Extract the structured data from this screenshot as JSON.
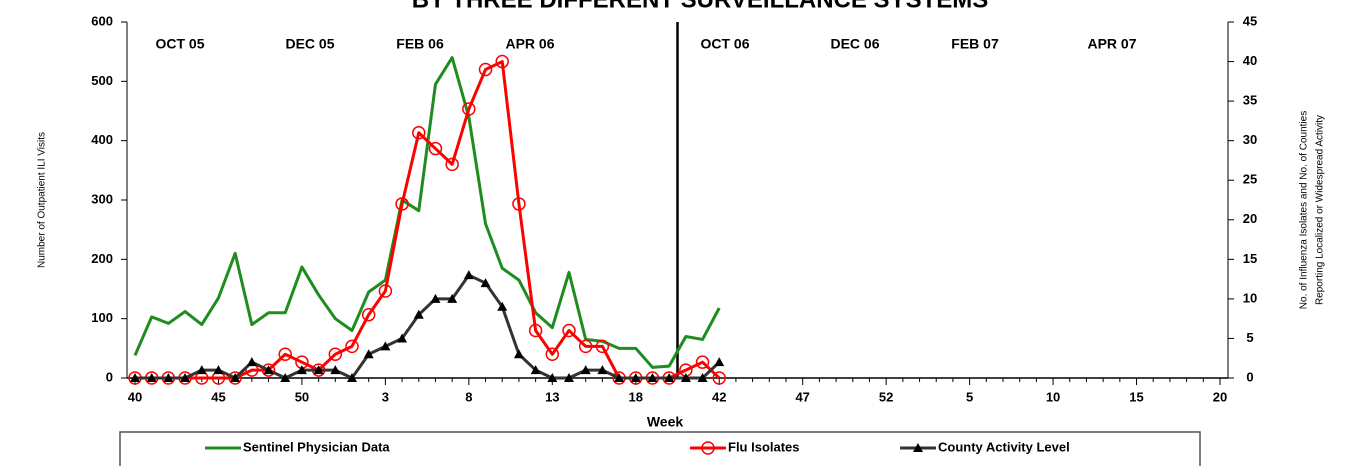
{
  "chart_data": {
    "type": "line",
    "title": "BY THREE DIFFERENT SURVEILLANCE SYSTEMS",
    "x_label": "Week",
    "y_label": "Number of Outpatient ILI Visits",
    "y2_label": [
      "No. of Influenza Isolates and No. of Counties",
      "Reporting Localized or Widespread Activity"
    ],
    "annotations": [
      "OCT 05",
      "DEC 05",
      "FEB 06",
      "APR 06",
      "OCT 06",
      "DEC 06",
      "FEB 07",
      "APR 07"
    ],
    "categories": [
      "40",
      null,
      null,
      null,
      null,
      "45",
      null,
      null,
      null,
      null,
      "50",
      null,
      null,
      null,
      null,
      "3",
      null,
      null,
      null,
      null,
      "8",
      null,
      null,
      null,
      null,
      "13",
      null,
      null,
      null,
      null,
      "18",
      null,
      null,
      null,
      null,
      "42",
      null,
      null,
      null,
      null,
      "47",
      null,
      null,
      null,
      null,
      "52",
      null,
      null,
      null,
      null,
      "5",
      null,
      null,
      null,
      null,
      "10",
      null,
      null,
      null,
      null,
      "15",
      null,
      null,
      null,
      null,
      "20"
    ],
    "ylim": [
      0,
      600
    ],
    "yticks": [
      0,
      100,
      200,
      300,
      400,
      500,
      600
    ],
    "y2lim": [
      0,
      45
    ],
    "y2ticks": [
      0,
      5,
      10,
      15,
      20,
      25,
      30,
      35,
      40,
      45
    ],
    "legend": "bottom",
    "series": [
      {
        "name": "Sentinel Physician Data",
        "color": "#1e8c1e",
        "marker": "none",
        "values": [
          38,
          103,
          92,
          112,
          90,
          135,
          210,
          90,
          110,
          110,
          187,
          140,
          100,
          80,
          145,
          165,
          300,
          282,
          495,
          540,
          440,
          260,
          185,
          165,
          110,
          85,
          178,
          65,
          62,
          50,
          50,
          18,
          20,
          70,
          65,
          118,
          null,
          null,
          null,
          null,
          null,
          null,
          null,
          null,
          null,
          null,
          null,
          null,
          null,
          null,
          null,
          null,
          null,
          null,
          null,
          null,
          null,
          null,
          null,
          null,
          null,
          null,
          null,
          null,
          null,
          null
        ]
      },
      {
        "name": "Flu Isolates",
        "color": "#ff0000",
        "marker": "circle",
        "axis": "y2",
        "values": [
          0,
          0,
          0,
          0,
          0,
          0,
          0,
          1,
          1,
          3,
          2,
          1,
          3,
          4,
          8,
          11,
          22,
          31,
          29,
          27,
          34,
          39,
          40,
          22,
          6,
          3,
          6,
          4,
          4,
          0,
          0,
          0,
          0,
          1,
          2,
          0,
          null,
          null,
          null,
          null,
          null,
          null,
          null,
          null,
          null,
          null,
          null,
          null,
          null,
          null,
          null,
          null,
          null,
          null,
          null,
          null,
          null,
          null,
          null,
          null,
          null,
          null,
          null,
          null,
          null,
          null
        ]
      },
      {
        "name": "County Activity Level",
        "color": "#333333",
        "marker": "triangle",
        "axis": "y2",
        "values": [
          0,
          0,
          0,
          0,
          1,
          1,
          0,
          2,
          1,
          0,
          1,
          1,
          1,
          0,
          3,
          4,
          5,
          8,
          10,
          10,
          13,
          12,
          9,
          3,
          1,
          0,
          0,
          1,
          1,
          0,
          0,
          0,
          0,
          0,
          0,
          2,
          null,
          null,
          null,
          null,
          null,
          null,
          null,
          null,
          null,
          null,
          null,
          null,
          null,
          null,
          null,
          null,
          null,
          null,
          null,
          null,
          null,
          null,
          null,
          null,
          null,
          null,
          null,
          null,
          null,
          null
        ]
      }
    ]
  }
}
